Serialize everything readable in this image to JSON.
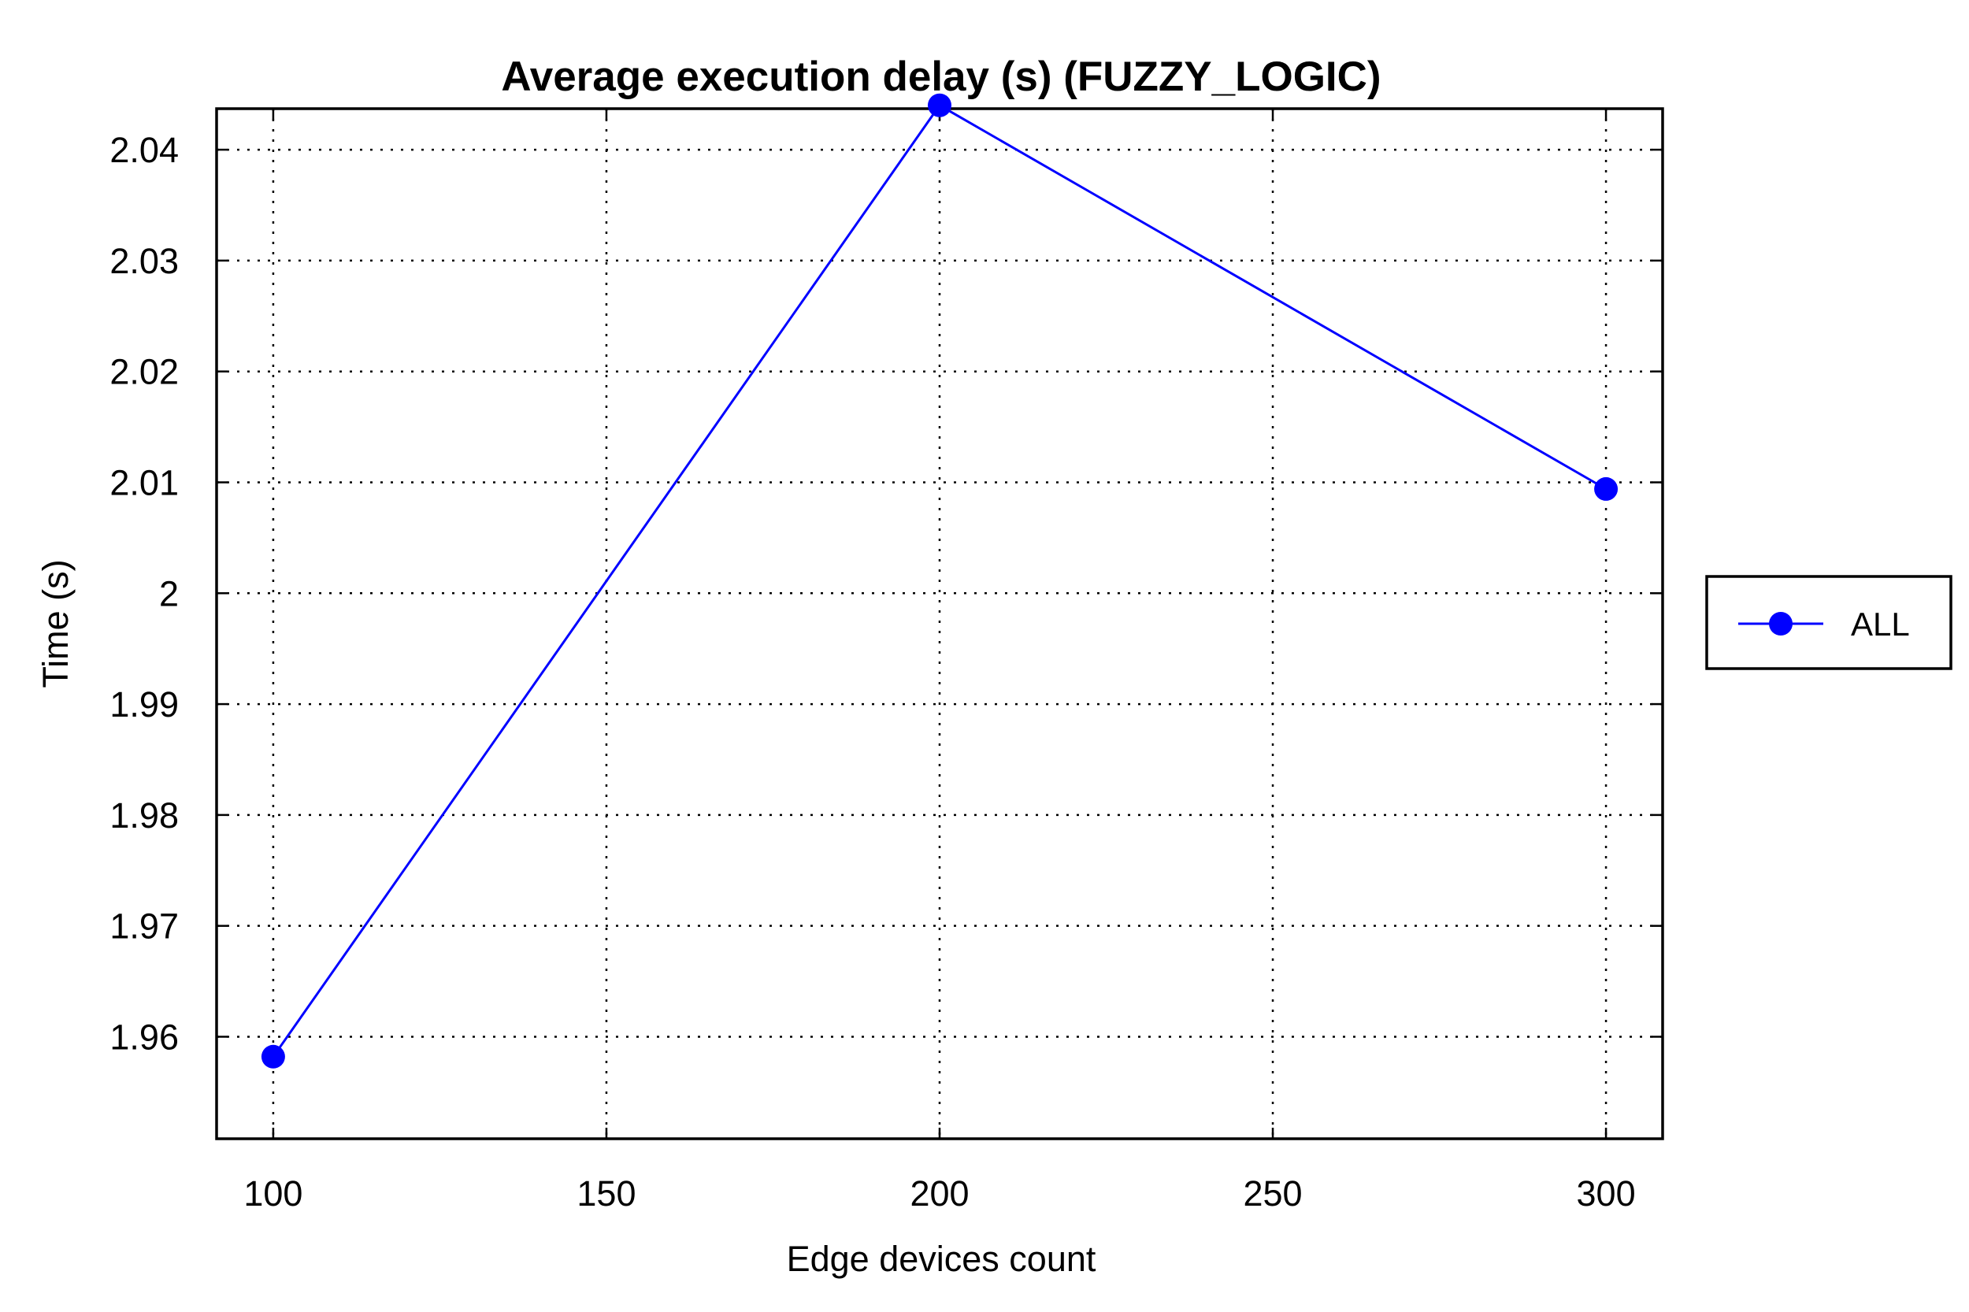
{
  "chart_data": {
    "type": "line",
    "title": "Average execution delay (s) (FUZZY_LOGIC)",
    "xlabel": "Edge devices count",
    "ylabel": "Time (s)",
    "x": [
      100,
      200,
      300
    ],
    "series": [
      {
        "name": "ALL",
        "values": [
          1.9582,
          2.044,
          2.0094
        ],
        "color": "#0000ff",
        "marker": "circle"
      }
    ],
    "xlim": [
      91.5,
      308.5
    ],
    "ylim": [
      1.9508,
      2.0437
    ],
    "xticks": [
      100,
      150,
      200,
      250,
      300
    ],
    "xtick_labels": [
      "100",
      "150",
      "200",
      "250",
      "300"
    ],
    "yticks": [
      1.96,
      1.97,
      1.98,
      1.99,
      2.0,
      2.01,
      2.02,
      2.03,
      2.04
    ],
    "ytick_labels": [
      "1.96",
      "1.97",
      "1.98",
      "1.99",
      "2",
      "2.01",
      "2.02",
      "2.03",
      "2.04"
    ],
    "grid": true,
    "legend_position": "right-outside"
  }
}
